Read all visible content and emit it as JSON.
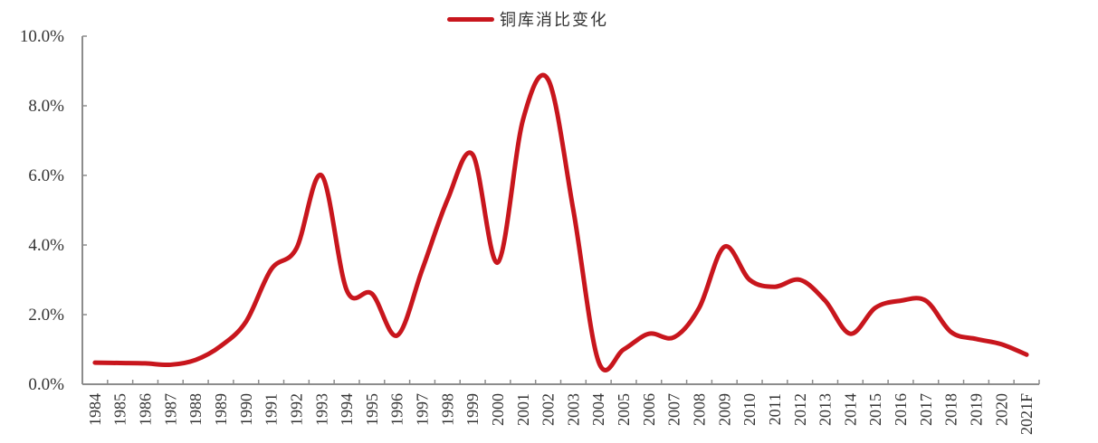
{
  "legend": {
    "label": "铜库消比变化",
    "color": "#c8161d"
  },
  "chart_data": {
    "type": "line",
    "title": "",
    "xlabel": "",
    "ylabel": "",
    "ylim": [
      0,
      10
    ],
    "y_ticks": [
      "0.0%",
      "2.0%",
      "4.0%",
      "6.0%",
      "8.0%",
      "10.0%"
    ],
    "grid": false,
    "legend_position": "top-center",
    "categories": [
      "1984",
      "1985",
      "1986",
      "1987",
      "1988",
      "1989",
      "1990",
      "1991",
      "1992",
      "1993",
      "1994",
      "1995",
      "1996",
      "1997",
      "1998",
      "1999",
      "2000",
      "2001",
      "2002",
      "2003",
      "2004",
      "2005",
      "2006",
      "2007",
      "2008",
      "2009",
      "2010",
      "2011",
      "2012",
      "2013",
      "2014",
      "2015",
      "2016",
      "2017",
      "2018",
      "2019",
      "2020",
      "2021F"
    ],
    "series": [
      {
        "name": "铜库消比变化",
        "color": "#c8161d",
        "values": [
          0.62,
          0.61,
          0.6,
          0.56,
          0.7,
          1.1,
          1.8,
          3.3,
          3.9,
          6.0,
          2.7,
          2.6,
          1.4,
          3.3,
          5.3,
          6.6,
          3.5,
          7.6,
          8.75,
          5.0,
          0.65,
          1.0,
          1.45,
          1.35,
          2.2,
          3.95,
          3.0,
          2.8,
          3.0,
          2.4,
          1.45,
          2.2,
          2.4,
          2.4,
          1.5,
          1.3,
          1.15,
          0.85
        ]
      }
    ]
  }
}
